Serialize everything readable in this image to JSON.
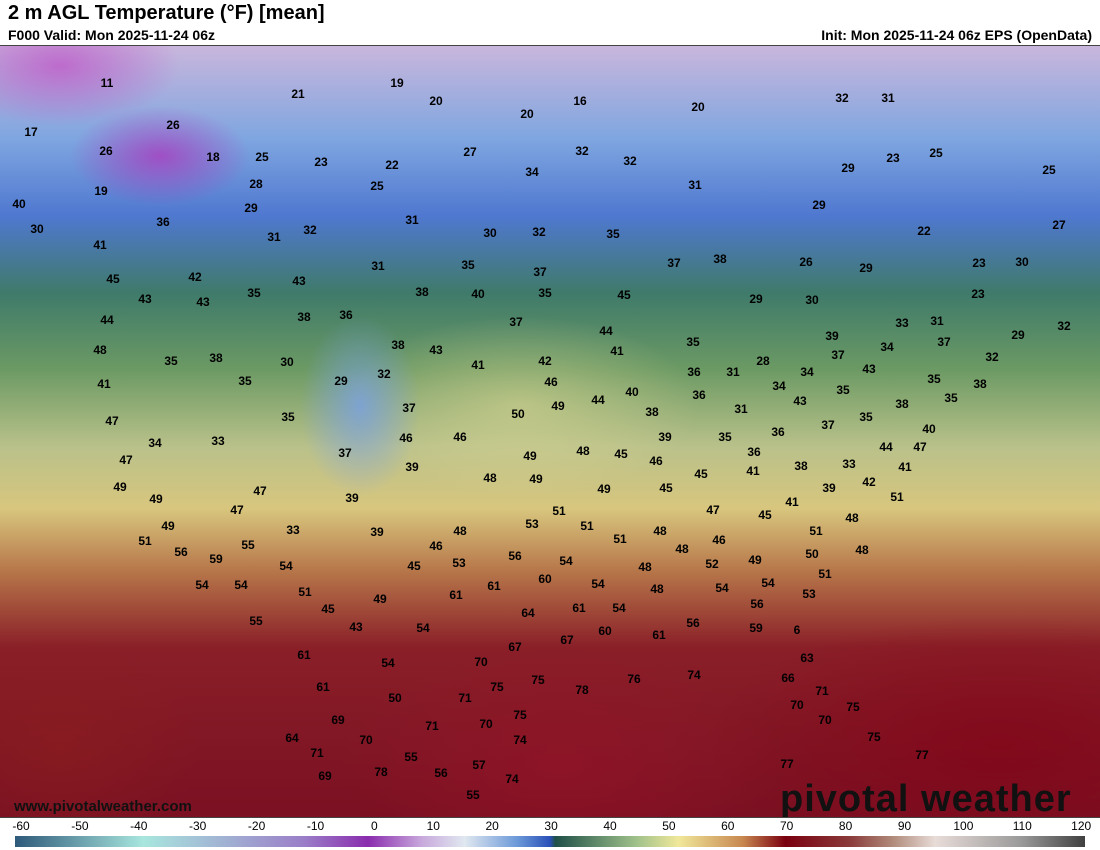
{
  "header": {
    "title": "2 m AGL Temperature (°F) [mean]",
    "valid": "F000 Valid: Mon 2025-11-24 06z",
    "init": "Init: Mon 2025-11-24 06z EPS (OpenData)"
  },
  "footer": {
    "url": "www.pivotalweather.com",
    "logo": "pivotal weather"
  },
  "colorbar": {
    "ticks": [
      "-60",
      "-50",
      "-40",
      "-30",
      "-20",
      "-10",
      "0",
      "10",
      "20",
      "30",
      "40",
      "50",
      "60",
      "70",
      "80",
      "90",
      "100",
      "110",
      "120"
    ]
  },
  "temperatures": [
    "11",
    "19",
    "21",
    "20",
    "16",
    "20",
    "20",
    "32",
    "31",
    "17",
    "26",
    "26",
    "18",
    "25",
    "23",
    "22",
    "27",
    "32",
    "32",
    "34",
    "23",
    "25",
    "29",
    "25",
    "19",
    "28",
    "25",
    "31",
    "40",
    "29",
    "29",
    "30",
    "36",
    "31",
    "31",
    "32",
    "30",
    "32",
    "35",
    "22",
    "27",
    "41",
    "35",
    "37",
    "26",
    "29",
    "23",
    "30",
    "45",
    "42",
    "43",
    "31",
    "37",
    "38",
    "23",
    "43",
    "43",
    "35",
    "38",
    "40",
    "35",
    "45",
    "29",
    "30",
    "44",
    "38",
    "36",
    "37",
    "44",
    "33",
    "31",
    "29",
    "32",
    "48",
    "35",
    "38",
    "30",
    "38",
    "43",
    "41",
    "42",
    "41",
    "35",
    "39",
    "34",
    "37",
    "32",
    "41",
    "35",
    "29",
    "32",
    "46",
    "36",
    "31",
    "28",
    "34",
    "37",
    "43",
    "35",
    "38",
    "35",
    "37",
    "50",
    "49",
    "44",
    "40",
    "38",
    "36",
    "31",
    "34",
    "43",
    "35",
    "35",
    "38",
    "35",
    "47",
    "34",
    "33",
    "46",
    "46",
    "49",
    "48",
    "45",
    "39",
    "35",
    "36",
    "36",
    "37",
    "40",
    "47",
    "47",
    "37",
    "39",
    "48",
    "49",
    "46",
    "45",
    "41",
    "38",
    "33",
    "44",
    "41",
    "49",
    "47",
    "39",
    "49",
    "45",
    "39",
    "42",
    "49",
    "47",
    "51",
    "47",
    "45",
    "41",
    "51",
    "49",
    "33",
    "39",
    "48",
    "53",
    "51",
    "48",
    "51",
    "51",
    "56",
    "59",
    "55",
    "46",
    "56",
    "54",
    "51",
    "48",
    "48",
    "46",
    "49",
    "50",
    "48",
    "54",
    "54",
    "54",
    "45",
    "53",
    "48",
    "52",
    "54",
    "51",
    "51",
    "61",
    "60",
    "54",
    "48",
    "54",
    "53",
    "55",
    "45",
    "49",
    "61",
    "64",
    "61",
    "54",
    "56",
    "43",
    "54",
    "60",
    "61",
    "56",
    "59",
    "6",
    "67",
    "67",
    "61",
    "54",
    "70",
    "63",
    "78",
    "76",
    "74",
    "61",
    "75",
    "75",
    "66",
    "71",
    "71",
    "50",
    "75",
    "70",
    "75",
    "69",
    "71",
    "70",
    "70",
    "64",
    "70",
    "74",
    "75",
    "71",
    "55",
    "57",
    "77",
    "69",
    "78",
    "56",
    "74",
    "77",
    "55"
  ]
}
